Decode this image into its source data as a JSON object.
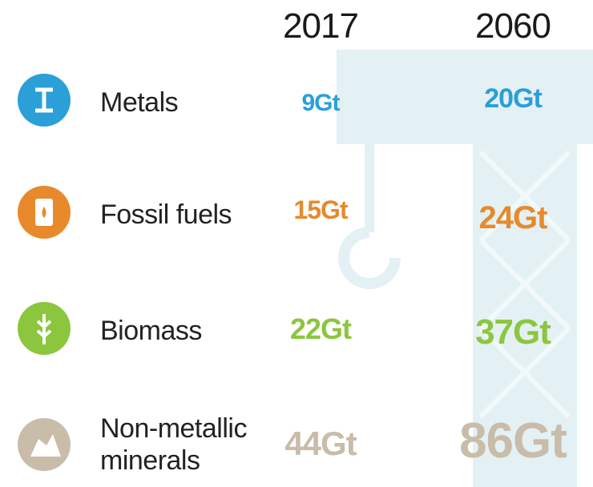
{
  "header": {
    "columns": [
      "2017",
      "2060"
    ]
  },
  "table": {
    "rows": [
      {
        "label": "Metals",
        "values": [
          "9Gt",
          "20Gt"
        ]
      },
      {
        "label": "Fossil fuels",
        "values": [
          "15Gt",
          "24Gt"
        ]
      },
      {
        "label": "Biomass",
        "values": [
          "22Gt",
          "37Gt"
        ]
      },
      {
        "label": "Non-metallic minerals",
        "values": [
          "44Gt",
          "86Gt"
        ]
      }
    ]
  }
}
